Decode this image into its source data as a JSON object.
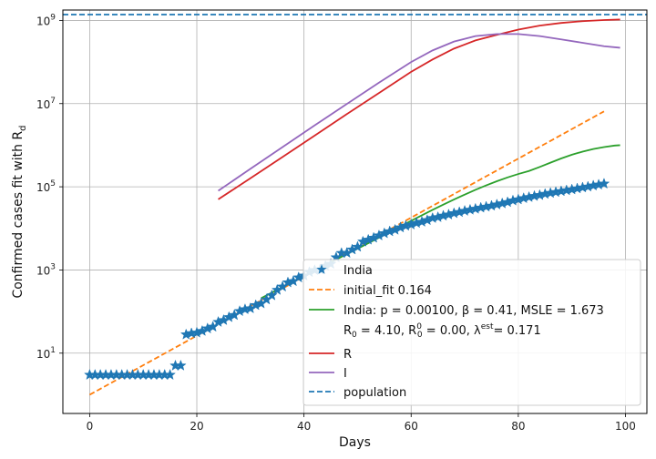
{
  "chart_data": {
    "type": "line",
    "title": "",
    "xlabel": "Days",
    "ylabel": "Confirmed cases fit with R",
    "ylabel_sub": "d",
    "xlim": [
      -5,
      104
    ],
    "ylim_log10": [
      -0.45,
      9.25
    ],
    "yscale": "log",
    "grid": true,
    "legend_position": "lower right",
    "x_ticks": [
      0,
      20,
      40,
      60,
      80,
      100
    ],
    "y_ticks": [
      {
        "exp": 1,
        "label": "10",
        "sup": "1"
      },
      {
        "exp": 3,
        "label": "10",
        "sup": "3"
      },
      {
        "exp": 5,
        "label": "10",
        "sup": "5"
      },
      {
        "exp": 7,
        "label": "10",
        "sup": "7"
      },
      {
        "exp": 9,
        "label": "10",
        "sup": "9"
      }
    ],
    "colors": {
      "india": "#1f77b4",
      "initial_fit": "#ff7f0e",
      "fit": "#2ca02c",
      "R": "#d62728",
      "I": "#9467bd",
      "population": "#1f77b4"
    },
    "legend": [
      {
        "key": "india",
        "style": "star",
        "label": "India"
      },
      {
        "key": "initial_fit",
        "style": "dashed",
        "label": "initial_fit 0.164"
      },
      {
        "key": "fit",
        "style": "solid",
        "label": "India: p = 0.00100,  β =  0.41, MSLE = 1.673",
        "label2": {
          "a": " R",
          "a_sub": "0",
          "b": " = 4.10, R",
          "b_sub": "0",
          "b_sup": "0",
          "c": " = 0.00, λ",
          "c_sup": "est",
          "d": "= 0.171"
        }
      },
      {
        "key": "R",
        "style": "solid",
        "label": "R"
      },
      {
        "key": "I",
        "style": "solid",
        "label": "I"
      },
      {
        "key": "population",
        "style": "dashed",
        "label": "population"
      }
    ],
    "population": 1380000000,
    "series": [
      {
        "key": "india",
        "name": "India",
        "type": "scatter",
        "x": [
          0,
          1,
          2,
          3,
          4,
          5,
          6,
          7,
          8,
          9,
          10,
          11,
          12,
          13,
          14,
          15,
          16,
          17,
          18,
          19,
          20,
          21,
          22,
          23,
          24,
          25,
          26,
          27,
          28,
          29,
          30,
          31,
          32,
          33,
          34,
          35,
          36,
          37,
          38,
          39,
          40,
          41,
          42,
          43,
          44,
          45,
          46,
          47,
          48,
          49,
          50,
          51,
          52,
          53,
          54,
          55,
          56,
          57,
          58,
          59,
          60,
          61,
          62,
          63,
          64,
          65,
          66,
          67,
          68,
          69,
          70,
          71,
          72,
          73,
          74,
          75,
          76,
          77,
          78,
          79,
          80,
          81,
          82,
          83,
          84,
          85,
          86,
          87,
          88,
          89,
          90,
          91,
          92,
          93,
          94,
          95,
          96
        ],
        "y": [
          3,
          3,
          3,
          3,
          3,
          3,
          3,
          3,
          3,
          3,
          3,
          3,
          3,
          3,
          3,
          3,
          5,
          5,
          28,
          30,
          31,
          34,
          39,
          43,
          56,
          62,
          73,
          82,
          102,
          113,
          119,
          142,
          156,
          194,
          244,
          330,
          396,
          499,
          536,
          657,
          727,
          887,
          987,
          1024,
          1251,
          1397,
          1998,
          2543,
          2567,
          3082,
          3588,
          4778,
          5311,
          5916,
          6725,
          7598,
          8446,
          9205,
          10453,
          11487,
          12322,
          13430,
          14352,
          15722,
          17615,
          18539,
          20080,
          21370,
          23077,
          24530,
          26283,
          27890,
          29451,
          31324,
          33062,
          34863,
          37257,
          39699,
          42505,
          46437,
          49400,
          52987,
          56351,
          59695,
          62808,
          67161,
          70768,
          74292,
          78055,
          81997,
          85784,
          90648,
          95698,
          100328,
          106475,
          112028,
          118226
        ]
      },
      {
        "key": "initial_fit",
        "name": "initial_fit 0.164",
        "type": "line",
        "x": [
          0,
          96
        ],
        "y": [
          1.0,
          6500000
        ]
      },
      {
        "key": "fit",
        "name": "India: p = 0.00100,  β =  0.41, MSLE = 1.673",
        "type": "line",
        "x": [
          32,
          34,
          36,
          38,
          40,
          42,
          44,
          46,
          48,
          50,
          52,
          54,
          56,
          58,
          60,
          62,
          64,
          66,
          68,
          70,
          72,
          74,
          76,
          78,
          80,
          82,
          84,
          86,
          88,
          90,
          92,
          94,
          96,
          98,
          99
        ],
        "y": [
          210,
          285,
          390,
          530,
          720,
          980,
          1320,
          1780,
          2400,
          3250,
          4400,
          6000,
          8200,
          11200,
          15200,
          20600,
          27800,
          37200,
          49500,
          65000,
          84500,
          108000,
          136000,
          168000,
          203000,
          240000,
          300000,
          380000,
          480000,
          590000,
          700000,
          810000,
          900000,
          980000,
          1000000
        ]
      },
      {
        "key": "R",
        "name": "R",
        "type": "line",
        "x": [
          24,
          30,
          36,
          42,
          48,
          54,
          60,
          64,
          68,
          72,
          76,
          80,
          84,
          88,
          92,
          96,
          99
        ],
        "y": [
          50000,
          160000,
          520000,
          1700000,
          5600000,
          18000000,
          58000000,
          115000000,
          210000000,
          330000000,
          450000000,
          600000000,
          750000000,
          870000000,
          960000000,
          1020000000,
          1050000000
        ]
      },
      {
        "key": "I",
        "name": "I",
        "type": "line",
        "x": [
          24,
          30,
          36,
          42,
          48,
          54,
          60,
          64,
          68,
          72,
          76,
          80,
          84,
          88,
          92,
          96,
          99
        ],
        "y": [
          80000,
          270000,
          900000,
          3000000,
          9800000,
          32000000,
          100000000,
          190000000,
          310000000,
          420000000,
          470000000,
          470000000,
          420000000,
          350000000,
          290000000,
          240000000,
          220000000
        ]
      }
    ]
  }
}
